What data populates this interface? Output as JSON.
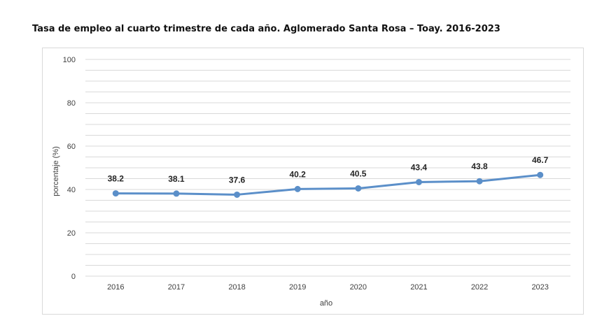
{
  "chart_data": {
    "type": "line",
    "title": "Tasa de empleo al cuarto trimestre de cada año. Aglomerado Santa Rosa – Toay. 2016-2023",
    "xlabel": "año",
    "ylabel": "porcentaje (%)",
    "categories": [
      "2016",
      "2017",
      "2018",
      "2019",
      "2020",
      "2021",
      "2022",
      "2023"
    ],
    "series": [
      {
        "values": [
          38.2,
          38.1,
          37.6,
          40.2,
          40.5,
          43.4,
          43.8,
          46.7
        ],
        "data_labels": [
          "38.2",
          "38.1",
          "37.6",
          "40.2",
          "40.5",
          "43.4",
          "43.8",
          "46.7"
        ]
      }
    ],
    "ylim": [
      0,
      100
    ],
    "yticks": [
      "0",
      "20",
      "40",
      "60",
      "80",
      "100"
    ],
    "grid": true,
    "legend": "none",
    "colors": {
      "line": "#5b8fc9",
      "grid": "#d9d9d9"
    }
  }
}
